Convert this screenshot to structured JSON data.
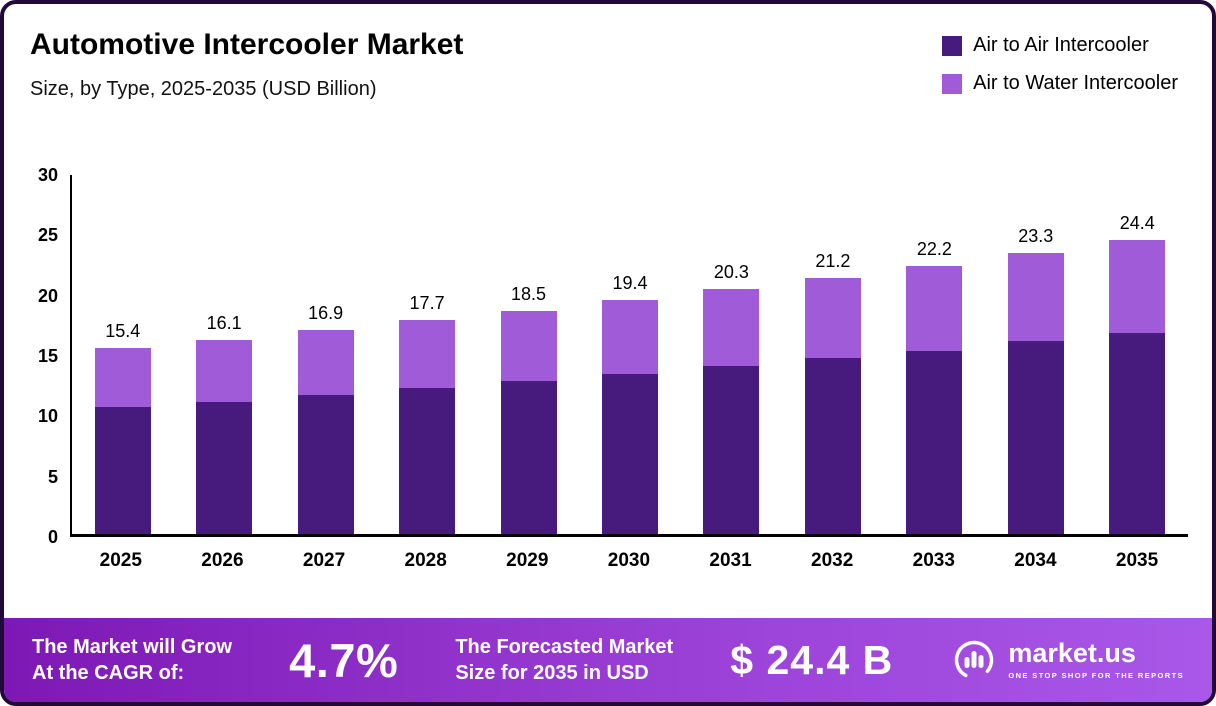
{
  "header": {
    "title": "Automotive Intercooler Market",
    "subtitle": "Size, by Type, 2025-2035 (USD Billion)"
  },
  "legend": [
    {
      "label": "Air to Air Intercooler",
      "color": "#471b7e"
    },
    {
      "label": "Air to Water Intercooler",
      "color": "#a05bd8"
    }
  ],
  "chart_data": {
    "type": "bar",
    "stacked": true,
    "title": "Automotive Intercooler Market Size, by Type, 2025-2035 (USD Billion)",
    "categories": [
      "2025",
      "2026",
      "2027",
      "2028",
      "2029",
      "2030",
      "2031",
      "2032",
      "2033",
      "2034",
      "2035"
    ],
    "series": [
      {
        "name": "Air to Air Intercooler",
        "color": "#471b7e",
        "values": [
          10.5,
          10.9,
          11.5,
          12.1,
          12.7,
          13.3,
          13.9,
          14.6,
          15.2,
          16.0,
          16.7
        ]
      },
      {
        "name": "Air to Water Intercooler",
        "color": "#a05bd8",
        "values": [
          4.9,
          5.2,
          5.4,
          5.6,
          5.8,
          6.1,
          6.4,
          6.6,
          7.0,
          7.3,
          7.7
        ]
      }
    ],
    "totals": [
      15.4,
      16.1,
      16.9,
      17.7,
      18.5,
      19.4,
      20.3,
      21.2,
      22.2,
      23.3,
      24.4
    ],
    "xlabel": "",
    "ylabel": "",
    "ylim": [
      0,
      30
    ],
    "yticks": [
      0,
      5,
      10,
      15,
      20,
      25,
      30
    ],
    "grid": false,
    "legend_position": "top-right"
  },
  "footer": {
    "left_line1": "The Market will Grow",
    "left_line2": "At the CAGR of:",
    "cagr": "4.7%",
    "mid_line1": "The Forecasted Market",
    "mid_line2": "Size for 2035 in USD",
    "value": "$ 24.4 B",
    "brand": "market.us",
    "brand_tagline": "ONE STOP SHOP FOR THE REPORTS"
  }
}
